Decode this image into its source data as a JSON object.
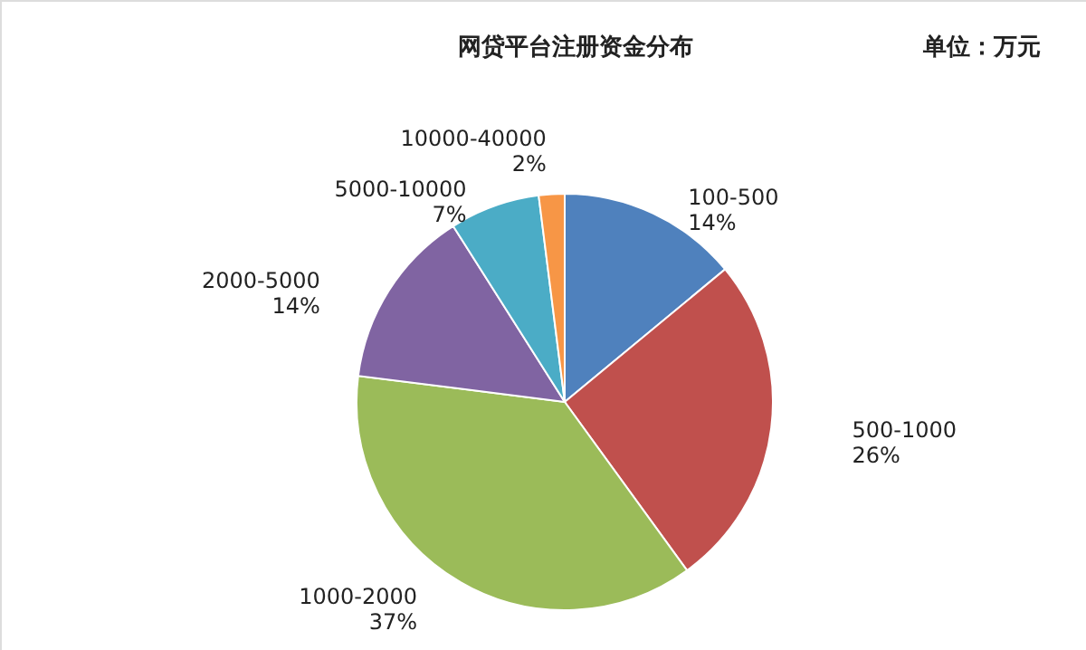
{
  "chart_data": {
    "type": "pie",
    "title": "网贷平台注册资金分布",
    "annotations": [
      "单位：万元"
    ],
    "categories": [
      "100-500",
      "500-1000",
      "1000-2000",
      "2000-5000",
      "5000-10000",
      "10000-40000"
    ],
    "values": [
      14,
      26,
      37,
      14,
      7,
      2
    ],
    "value_labels": [
      "14%",
      "26%",
      "37%",
      "14%",
      "7%",
      "2%"
    ],
    "colors": [
      "#4f81bd",
      "#c0504d",
      "#9bbb59",
      "#8064a2",
      "#4bacc6",
      "#f79646"
    ]
  }
}
